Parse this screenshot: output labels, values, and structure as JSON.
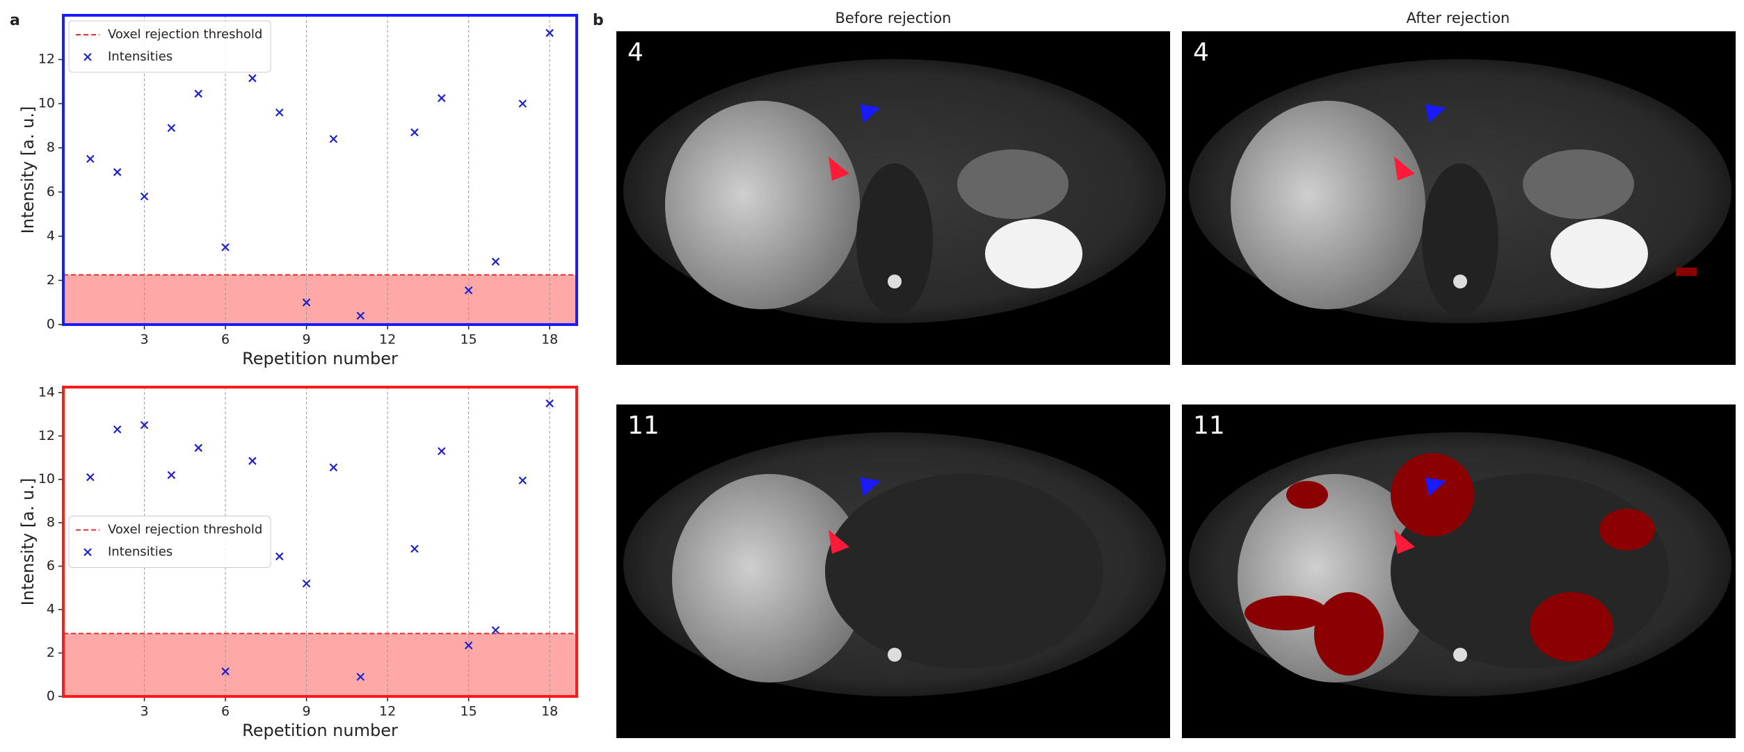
{
  "figure": {
    "panel_labels": [
      "a",
      "b"
    ],
    "column_titles": [
      "Before rejection",
      "After rejection"
    ],
    "row_labels": [
      "4",
      "11"
    ]
  },
  "chart_data": [
    {
      "type": "scatter",
      "xlabel": "Repetition number",
      "ylabel": "Intensity [a. u.]",
      "xlim": [
        0,
        19
      ],
      "ylim": [
        0,
        14
      ],
      "xticks": [
        3,
        6,
        9,
        12,
        15,
        18
      ],
      "yticks": [
        0,
        2,
        4,
        6,
        8,
        10,
        12
      ],
      "grid": "x",
      "legend": "upper left",
      "frame_color": "#1a1aff",
      "threshold": {
        "name": "Voxel rejection threshold",
        "value": 2.25,
        "color": "#e03030",
        "fill": "#ffa8a8"
      },
      "series": [
        {
          "name": "Intensities",
          "color": "#1f1fcc",
          "marker": "x",
          "x": [
            1,
            2,
            3,
            4,
            5,
            6,
            7,
            8,
            9,
            10,
            11,
            13,
            14,
            15,
            16,
            17,
            18
          ],
          "values": [
            7.5,
            6.9,
            5.8,
            8.9,
            10.45,
            3.5,
            11.15,
            9.6,
            1.0,
            8.4,
            0.4,
            8.7,
            10.25,
            1.55,
            2.85,
            10.0,
            13.2
          ]
        }
      ]
    },
    {
      "type": "scatter",
      "xlabel": "Repetition number",
      "ylabel": "Intensity [a. u.]",
      "xlim": [
        0,
        19
      ],
      "ylim": [
        0,
        14.25
      ],
      "xticks": [
        3,
        6,
        9,
        12,
        15,
        18
      ],
      "yticks": [
        0,
        2,
        4,
        6,
        8,
        10,
        12,
        14
      ],
      "grid": "x",
      "legend": "center left",
      "frame_color": "#ff1a1a",
      "threshold": {
        "name": "Voxel rejection threshold",
        "value": 2.9,
        "color": "#e03030",
        "fill": "#ffa8a8"
      },
      "series": [
        {
          "name": "Intensities",
          "color": "#1f1fcc",
          "marker": "x",
          "x": [
            1,
            2,
            3,
            4,
            5,
            6,
            7,
            8,
            9,
            10,
            11,
            13,
            14,
            15,
            16,
            17,
            18
          ],
          "values": [
            10.1,
            12.3,
            12.5,
            10.2,
            11.45,
            1.15,
            10.85,
            6.45,
            5.2,
            10.55,
            0.9,
            6.8,
            11.3,
            2.35,
            3.05,
            9.95,
            13.5
          ]
        }
      ]
    }
  ]
}
